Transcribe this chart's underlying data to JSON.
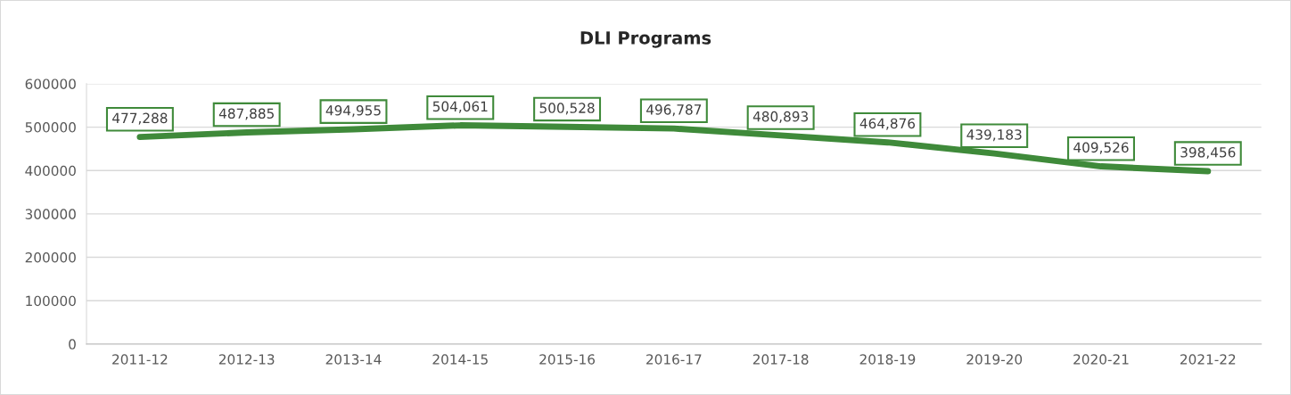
{
  "chart_data": {
    "type": "line",
    "title": "DLI Programs",
    "categories": [
      "2011-12",
      "2012-13",
      "2013-14",
      "2014-15",
      "2015-16",
      "2016-17",
      "2017-18",
      "2018-19",
      "2019-20",
      "2020-21",
      "2021-22"
    ],
    "series": [
      {
        "color": "#3f8a3a",
        "values": [
          477288,
          487885,
          494955,
          504061,
          500528,
          496787,
          480893,
          464876,
          439183,
          409526,
          398456
        ],
        "value_labels": [
          "477,288",
          "487,885",
          "494,955",
          "504,061",
          "500,528",
          "496,787",
          "480,893",
          "464,876",
          "439,183",
          "409,526",
          "398,456"
        ]
      }
    ],
    "ylim": [
      0,
      600000
    ],
    "yticks": [
      0,
      100000,
      200000,
      300000,
      400000,
      500000,
      600000
    ],
    "grid": "y",
    "line_style": "solid"
  }
}
